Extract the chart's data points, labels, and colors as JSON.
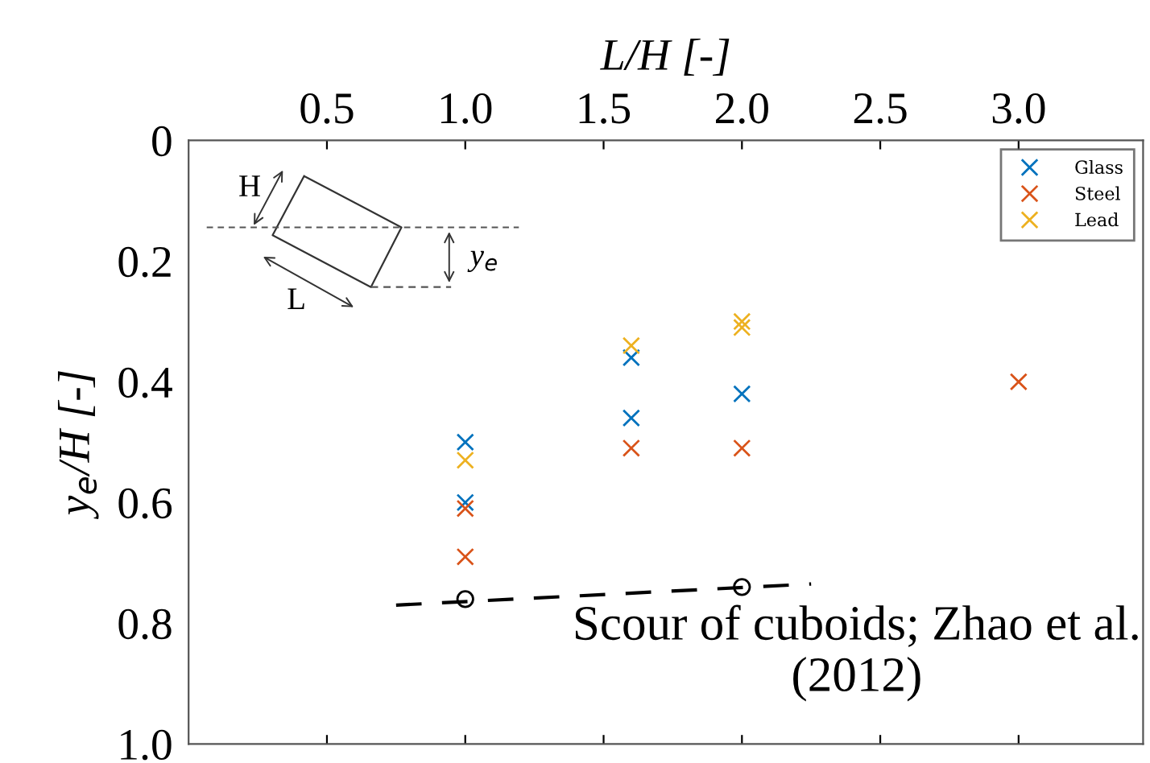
{
  "chart_data": {
    "type": "scatter",
    "xlabel": "L/H [-]",
    "ylabel": "y$_{e}$/H [-]",
    "xlim": [
      0,
      3.45
    ],
    "ylim": [
      1.0,
      0
    ],
    "xticks": [
      0.5,
      {
        "value": 1,
        "label": "1.0"
      },
      1.5,
      {
        "value": 2,
        "label": "2.0"
      },
      2.5,
      {
        "value": 3,
        "label": "3.0"
      }
    ],
    "yticks": [
      0,
      0.2,
      0.4,
      0.6,
      0.8,
      {
        "value": 1,
        "label": "1.0"
      }
    ],
    "tick_labels": "xy",
    "marker": "cross",
    "grid": false,
    "legend": "top right",
    "series": [
      {
        "name": "Glass",
        "color": "#0072bd",
        "x": [
          1.0,
          1.0,
          1.6,
          1.6,
          2.0
        ],
        "values": [
          0.5,
          0.6,
          0.36,
          0.46,
          0.42
        ]
      },
      {
        "name": "Steel",
        "color": "#d95319",
        "x": [
          1.0,
          1.0,
          1.6,
          2.0,
          3.0
        ],
        "values": [
          0.61,
          0.69,
          0.51,
          0.51,
          0.4
        ]
      },
      {
        "name": "Lead",
        "color": "#edb120",
        "x": [
          1.0,
          1.6,
          2.0,
          2.0
        ],
        "values": [
          0.53,
          0.34,
          0.3,
          0.31
        ]
      },
      {
        "type": "scatter",
        "marker": "circle",
        "color": "#000000",
        "x": [
          1.0,
          2.0
        ],
        "values": [
          0.76,
          0.74
        ]
      },
      {
        "type": "line",
        "line_style": "dashed",
        "marker": "none",
        "color": "#000000",
        "x": [
          0.75,
          2.25
        ],
        "values": [
          0.77,
          0.735
        ]
      }
    ],
    "annotations": [
      "Scour of cuboids; Zhao et al. (2012)",
      "H",
      "L",
      "y$_{e}$"
    ]
  }
}
